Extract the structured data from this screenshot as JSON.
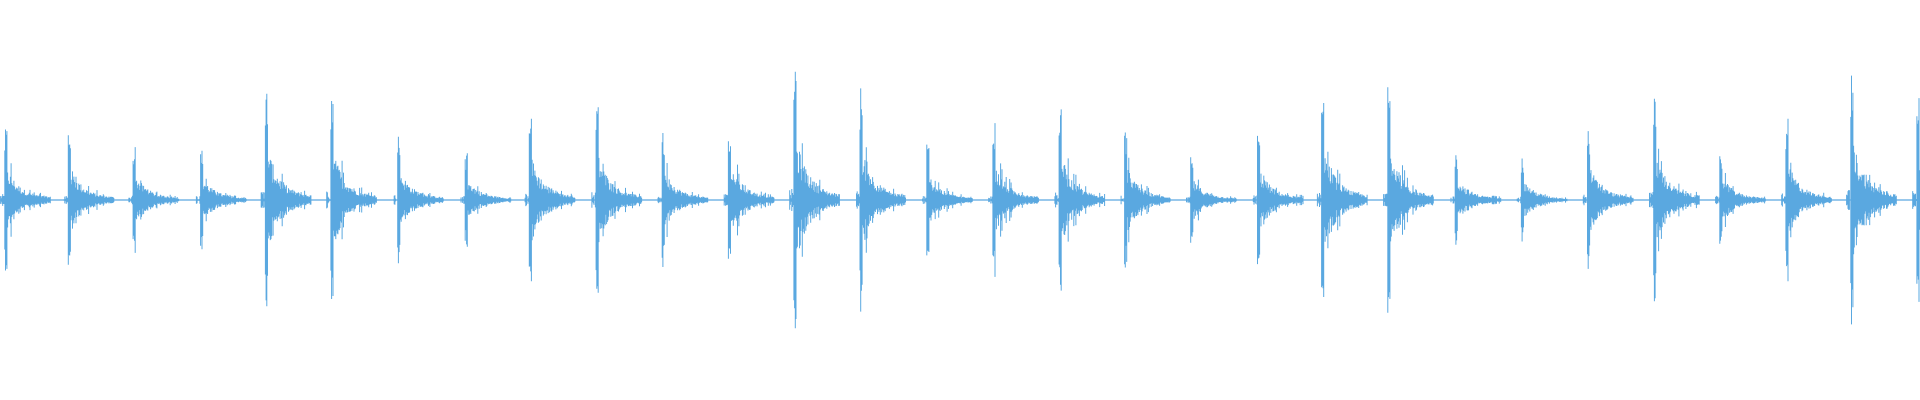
{
  "chart_data": {
    "type": "waveform",
    "color": "#5aa8e0",
    "x": [
      0,
      0.96,
      1.94,
      2.96,
      3.94,
      4.93,
      5.94,
      6.96,
      7.93,
      8.94,
      9.94,
      10.94,
      11.93,
      12.93,
      13.94,
      14.94,
      15.94,
      16.93,
      17.93,
      18.94,
      19.91,
      20.91,
      21.93,
      22.93,
      23.93,
      24.93,
      25.93,
      26.93,
      27.91,
      28.91
    ],
    "values": [
      0.37,
      0.37,
      0.29,
      0.25,
      0.58,
      0.54,
      0.33,
      0.24,
      0.48,
      0.5,
      0.34,
      0.4,
      0.69,
      0.57,
      0.28,
      0.4,
      0.47,
      0.37,
      0.23,
      0.34,
      0.58,
      0.58,
      0.25,
      0.22,
      0.37,
      0.52,
      0.26,
      0.41,
      0.66,
      0.61
    ],
    "xlim": [
      -0.07,
      28.96
    ],
    "ylim": [
      -1,
      1
    ]
  }
}
